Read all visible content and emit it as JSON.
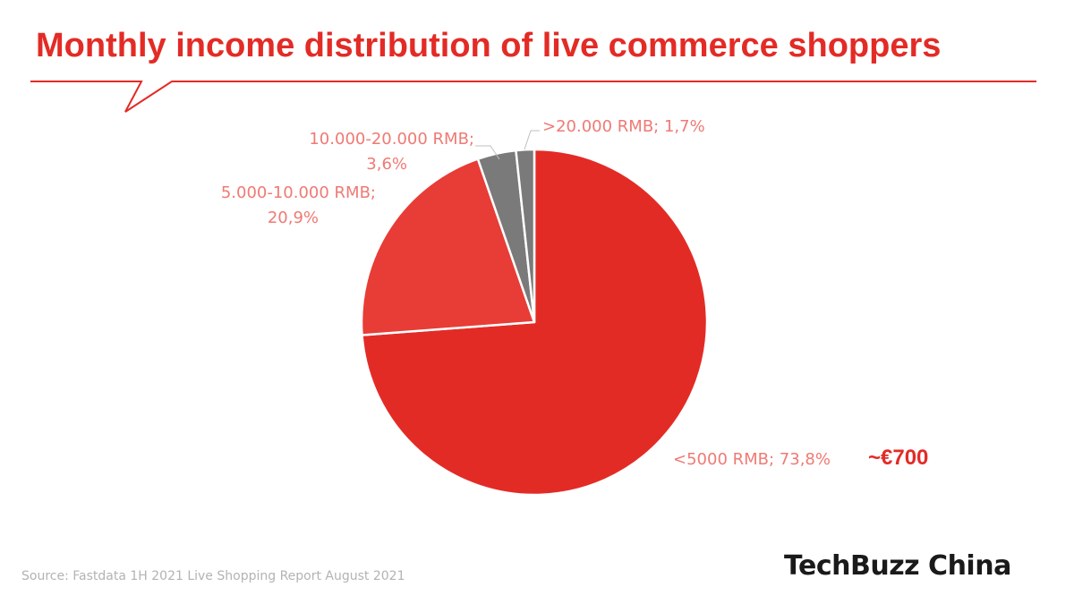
{
  "chart_data": {
    "type": "pie",
    "title": "Monthly income distribution of live commerce shoppers",
    "slices": [
      {
        "label": "<5000 RMB",
        "value": 73.8,
        "display_label": "<5000 RMB; 73,8%",
        "color": "#e32b26"
      },
      {
        "label": "5.000-10.000 RMB",
        "value": 20.9,
        "display_label_line1": "5.000-10.000 RMB;",
        "display_label_line2": "20,9%",
        "color": "#e83c36"
      },
      {
        "label": "10.000-20.000 RMB",
        "value": 3.6,
        "display_label_line1": "10.000-20.000 RMB;",
        "display_label_line2": "3,6%",
        "color": "#7a7a7a"
      },
      {
        "label": ">20.000 RMB",
        "value": 1.7,
        "display_label": ">20.000 RMB; 1,7%",
        "color": "#7a7a7a"
      }
    ],
    "annotation": "~€700",
    "legend": "none"
  },
  "footer": {
    "source": "Source:  Fastdata 1H 2021 Live Shopping Report August 2021",
    "logo": "TechBuzz China"
  },
  "colors": {
    "accent": "#e32b26",
    "label_text": "#ef7a74",
    "gray_slice": "#7a7a7a"
  }
}
